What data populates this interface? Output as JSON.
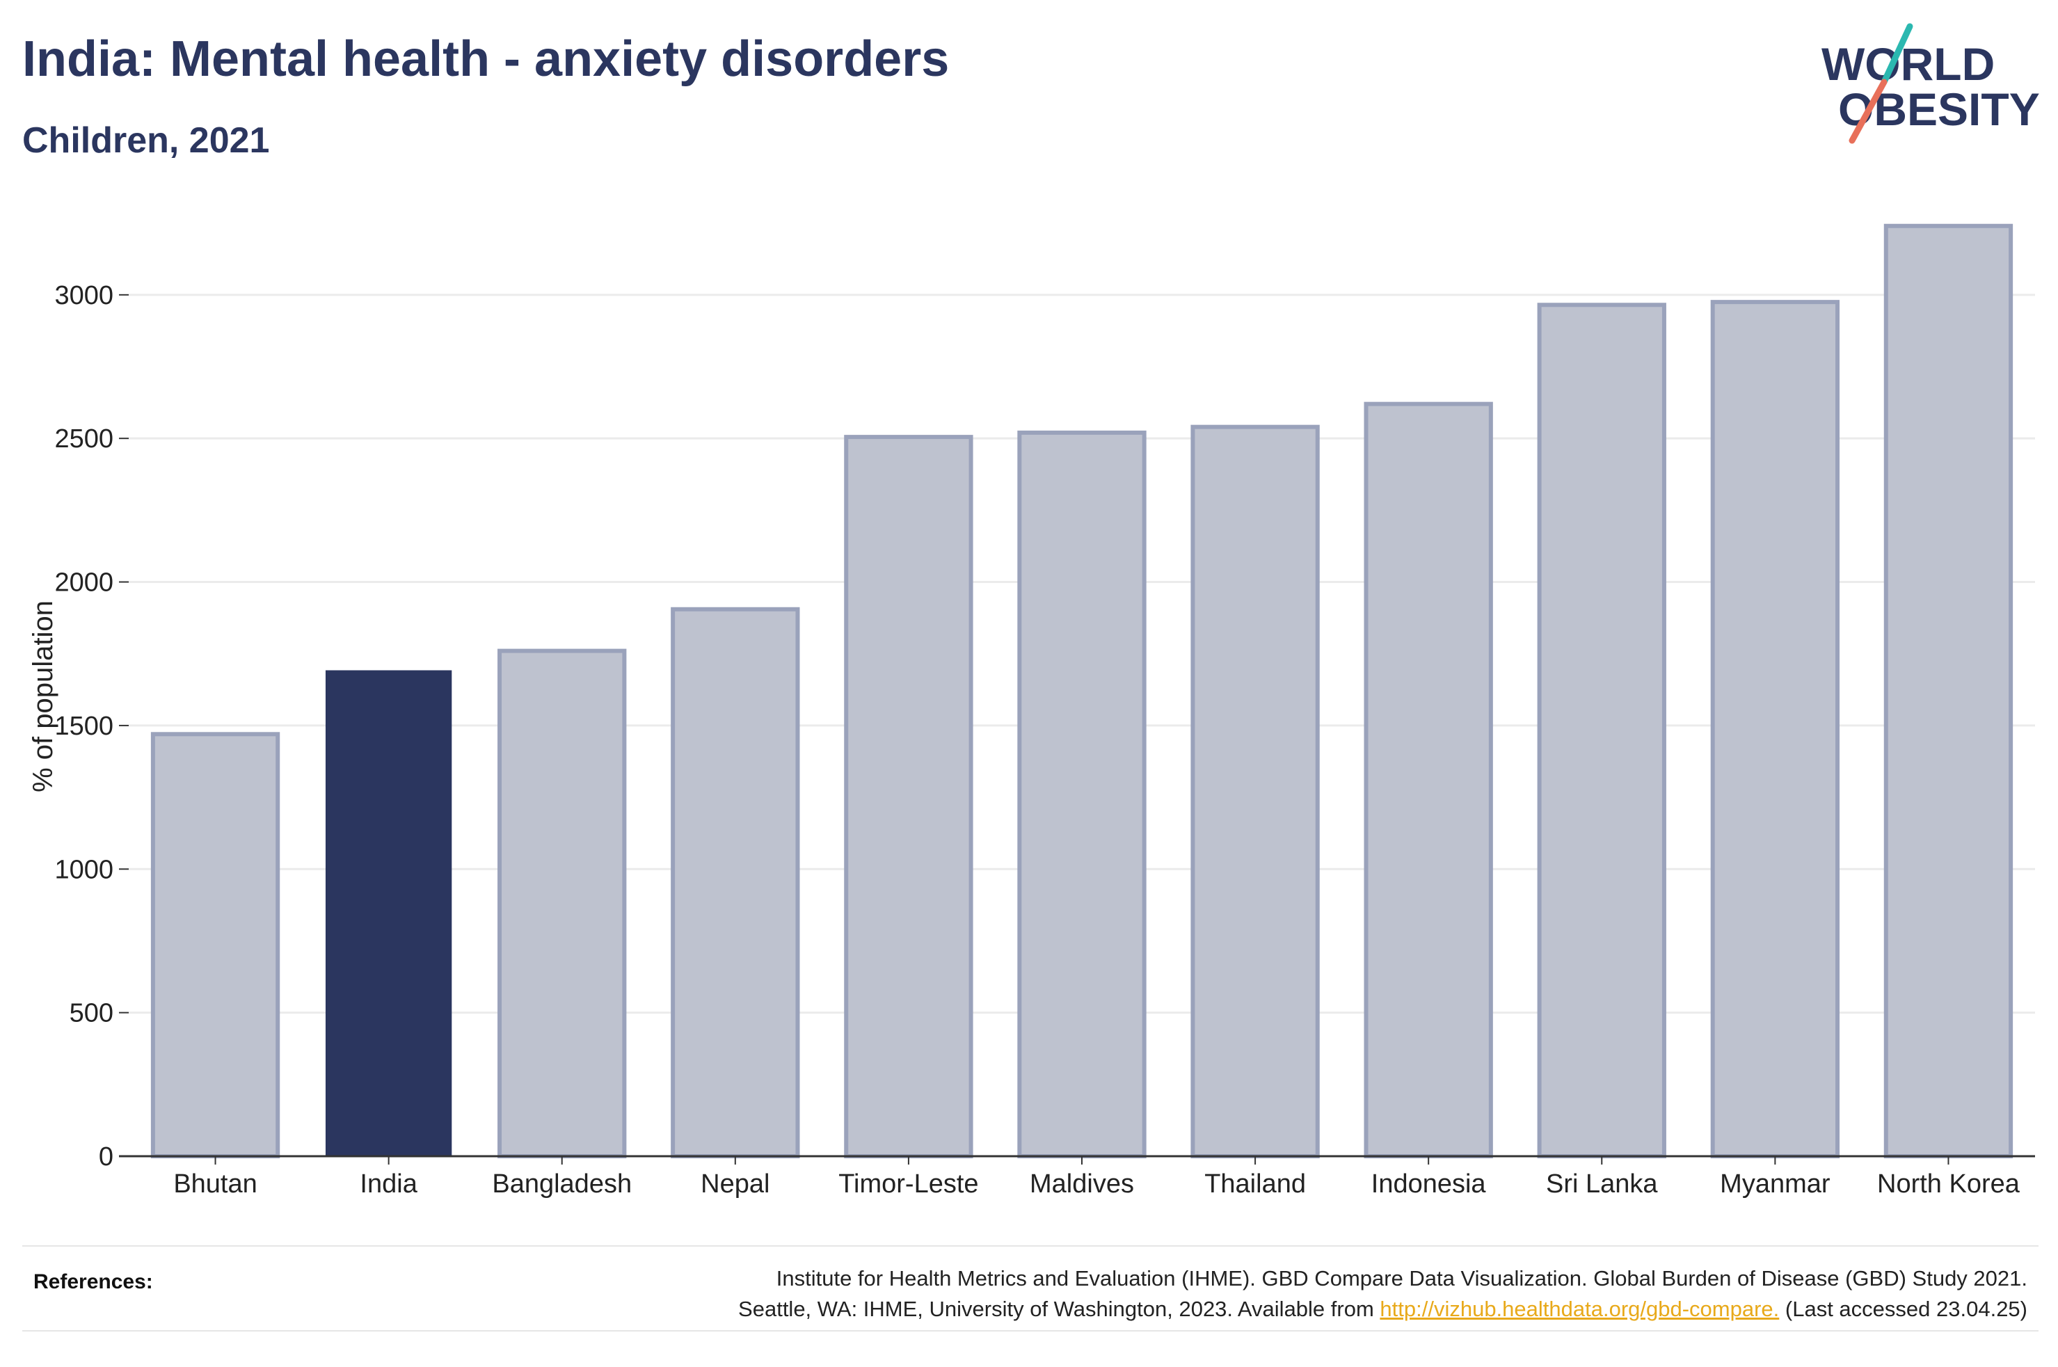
{
  "header": {
    "title": "India: Mental health - anxiety disorders",
    "subtitle": "Children, 2021"
  },
  "logo": {
    "line1": "WORLD",
    "line2": "OBESITY",
    "colors": {
      "text": "#2b365f",
      "slash_top": "#2bb8b0",
      "slash_bottom": "#e8705a"
    }
  },
  "chart_data": {
    "type": "bar",
    "categories": [
      "Bhutan",
      "India",
      "Bangladesh",
      "Nepal",
      "Timor-Leste",
      "Maldives",
      "Thailand",
      "Indonesia",
      "Sri Lanka",
      "Myanmar",
      "North Korea"
    ],
    "values": [
      1470,
      1690,
      1760,
      1905,
      2505,
      2520,
      2540,
      2620,
      2965,
      2975,
      3240
    ],
    "highlight": "India",
    "title": "India: Mental health - anxiety disorders",
    "subtitle": "Children, 2021",
    "xlabel": "",
    "ylabel": "% of population",
    "ylim": [
      0,
      3300
    ],
    "yticks": [
      0,
      500,
      1000,
      1500,
      2000,
      2500,
      3000
    ],
    "grid": true,
    "legend": "none",
    "colors": {
      "bar": "#bec2cf",
      "bar_edge": "#9aa2bb",
      "highlight": "#2b365f"
    }
  },
  "references": {
    "label": "References:",
    "line1": "Institute for Health Metrics and Evaluation (IHME). GBD Compare Data Visualization. Global Burden of Disease (GBD) Study 2021.",
    "line2_prefix": "Seattle, WA: IHME, University of Washington, 2023. Available from ",
    "link": "http://vizhub.healthdata.org/gbd-compare.",
    "line2_suffix": " (Last accessed 23.04.25)"
  }
}
